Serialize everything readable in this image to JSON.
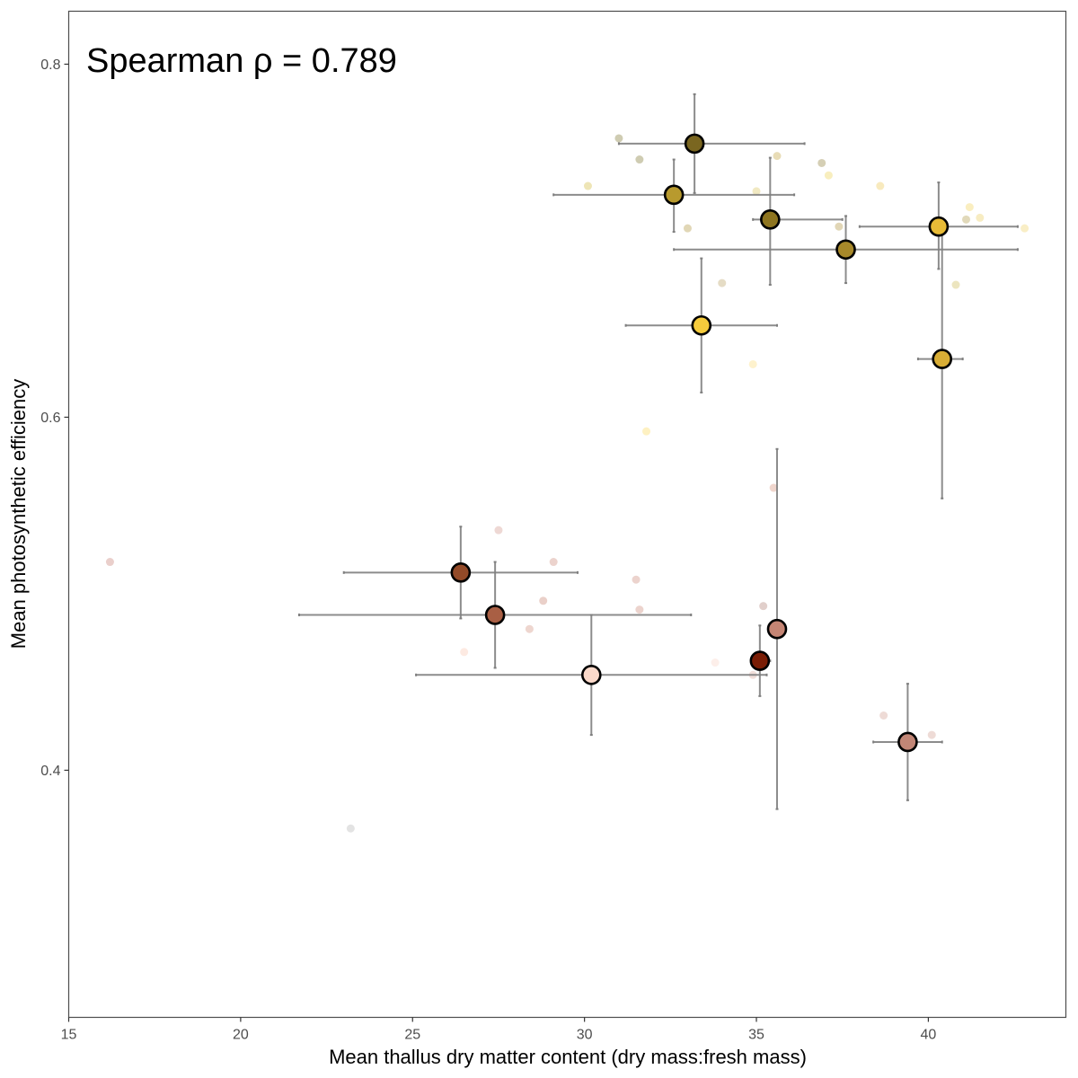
{
  "chart_data": {
    "type": "scatter",
    "title": "",
    "xlabel": "Mean thallus dry matter content (dry mass:fresh mass)",
    "ylabel": "Mean photosynthetic efficiency",
    "annotation": "Spearman ρ = 0.789",
    "xlim": [
      15,
      44
    ],
    "ylim": [
      0.26,
      0.83
    ],
    "x_ticks": [
      15,
      20,
      25,
      30,
      35,
      40
    ],
    "y_ticks": [
      0.4,
      0.6,
      0.8
    ],
    "x_tick_labels": [
      "15",
      "20",
      "25",
      "30",
      "35",
      "40"
    ],
    "y_tick_labels": [
      "0.4",
      "0.6",
      "0.8"
    ],
    "grid": false,
    "legend": "none",
    "colors": {
      "error_bar": "#7f7f7f",
      "point_outline": "#000000",
      "panel_border": "#4d4d4d"
    },
    "means": [
      {
        "x": 33.2,
        "y": 0.755,
        "x_err": [
          31.0,
          36.4
        ],
        "y_err": [
          0.727,
          0.783
        ],
        "color": "#7a6620"
      },
      {
        "x": 32.6,
        "y": 0.726,
        "x_err": [
          29.1,
          32.6
        ],
        "y_err": [
          0.705,
          0.746
        ],
        "color": "#b89a2e"
      },
      {
        "x": 32.6,
        "y": 0.726,
        "x_err": [
          32.6,
          36.1
        ],
        "y_err": [
          0.726,
          0.726
        ],
        "color": "#b89a2e"
      },
      {
        "x": 35.4,
        "y": 0.712,
        "x_err": [
          35.4,
          35.4
        ],
        "y_err": [
          0.675,
          0.747
        ],
        "color": "#8e7520"
      },
      {
        "x": 35.4,
        "y": 0.712,
        "x_err": [
          34.9,
          35.4
        ],
        "y_err": [
          0.712,
          0.712
        ],
        "color": "#8e7520"
      },
      {
        "x": 37.6,
        "y": 0.695,
        "x_err": [
          32.6,
          42.6
        ],
        "y_err": [
          0.676,
          0.714
        ],
        "color": "#a8892a"
      },
      {
        "x": 35.4,
        "y": 0.712,
        "x_err": [
          35.4,
          37.5
        ],
        "y_err": [
          0.712,
          0.712
        ],
        "color": "#8e7520"
      },
      {
        "x": 40.3,
        "y": 0.708,
        "x_err": [
          38.0,
          42.6
        ],
        "y_err": [
          0.684,
          0.733
        ],
        "color": "#e8bb37"
      },
      {
        "x": 33.4,
        "y": 0.652,
        "x_err": [
          31.2,
          35.6
        ],
        "y_err": [
          0.614,
          0.69
        ],
        "color": "#f5cb3c"
      },
      {
        "x": 40.4,
        "y": 0.633,
        "x_err": [
          39.7,
          41.0
        ],
        "y_err": [
          0.554,
          0.708
        ],
        "color": "#d8ad35"
      },
      {
        "x": 26.4,
        "y": 0.512,
        "x_err": [
          23.0,
          29.8
        ],
        "y_err": [
          0.486,
          0.538
        ],
        "color": "#934a28"
      },
      {
        "x": 27.4,
        "y": 0.488,
        "x_err": [
          21.7,
          33.1
        ],
        "y_err": [
          0.458,
          0.518
        ],
        "color": "#a95f44"
      },
      {
        "x": 35.6,
        "y": 0.48,
        "x_err": [
          35.6,
          35.6
        ],
        "y_err": [
          0.378,
          0.582
        ],
        "color": "#c58574"
      },
      {
        "x": 35.1,
        "y": 0.462,
        "x_err": [
          35.1,
          35.4
        ],
        "y_err": [
          0.442,
          0.482
        ],
        "color": "#7a1d05"
      },
      {
        "x": 30.2,
        "y": 0.454,
        "x_err": [
          25.1,
          35.3
        ],
        "y_err": [
          0.42,
          0.488
        ],
        "color": "#fbd9ca"
      },
      {
        "x": 39.4,
        "y": 0.416,
        "x_err": [
          38.4,
          40.4
        ],
        "y_err": [
          0.383,
          0.449
        ],
        "color": "#c28676"
      }
    ],
    "observations": [
      {
        "x": 31.0,
        "y": 0.758,
        "color": "#a8a272"
      },
      {
        "x": 31.6,
        "y": 0.746,
        "color": "#a8a272"
      },
      {
        "x": 30.1,
        "y": 0.731,
        "color": "#e0cf7a"
      },
      {
        "x": 35.6,
        "y": 0.748,
        "color": "#d6c07a"
      },
      {
        "x": 36.9,
        "y": 0.744,
        "color": "#b3a878"
      },
      {
        "x": 37.1,
        "y": 0.737,
        "color": "#f2e088"
      },
      {
        "x": 35.0,
        "y": 0.728,
        "color": "#e6d790"
      },
      {
        "x": 38.6,
        "y": 0.731,
        "color": "#f2d988"
      },
      {
        "x": 33.0,
        "y": 0.707,
        "color": "#c8b67a"
      },
      {
        "x": 37.4,
        "y": 0.708,
        "color": "#c9b57a"
      },
      {
        "x": 41.1,
        "y": 0.712,
        "color": "#c8ba82"
      },
      {
        "x": 41.2,
        "y": 0.719,
        "color": "#f5e08c"
      },
      {
        "x": 41.5,
        "y": 0.713,
        "color": "#f0dc90"
      },
      {
        "x": 42.8,
        "y": 0.707,
        "color": "#f4e098"
      },
      {
        "x": 34.0,
        "y": 0.676,
        "color": "#cfc096"
      },
      {
        "x": 40.8,
        "y": 0.675,
        "color": "#ddd08a"
      },
      {
        "x": 34.9,
        "y": 0.63,
        "color": "#fde8a4"
      },
      {
        "x": 31.8,
        "y": 0.592,
        "color": "#fde690"
      },
      {
        "x": 35.5,
        "y": 0.56,
        "color": "#e4b4a4"
      },
      {
        "x": 16.2,
        "y": 0.518,
        "color": "#d8a8a0"
      },
      {
        "x": 27.5,
        "y": 0.536,
        "color": "#e0b8b0"
      },
      {
        "x": 29.1,
        "y": 0.518,
        "color": "#dcaea4"
      },
      {
        "x": 31.5,
        "y": 0.508,
        "color": "#dcaea4"
      },
      {
        "x": 28.8,
        "y": 0.496,
        "color": "#d8aa9c"
      },
      {
        "x": 31.6,
        "y": 0.491,
        "color": "#dcaea4"
      },
      {
        "x": 28.4,
        "y": 0.48,
        "color": "#e0b4a8"
      },
      {
        "x": 26.5,
        "y": 0.467,
        "color": "#fbd9ca"
      },
      {
        "x": 33.8,
        "y": 0.461,
        "color": "#fbe2d8"
      },
      {
        "x": 35.2,
        "y": 0.493,
        "color": "#c9a8a0"
      },
      {
        "x": 34.9,
        "y": 0.454,
        "color": "#e6c4bc"
      },
      {
        "x": 38.7,
        "y": 0.431,
        "color": "#e0beb4"
      },
      {
        "x": 40.1,
        "y": 0.42,
        "color": "#e0beb4"
      },
      {
        "x": 23.2,
        "y": 0.367,
        "color": "#cccccc"
      }
    ]
  }
}
